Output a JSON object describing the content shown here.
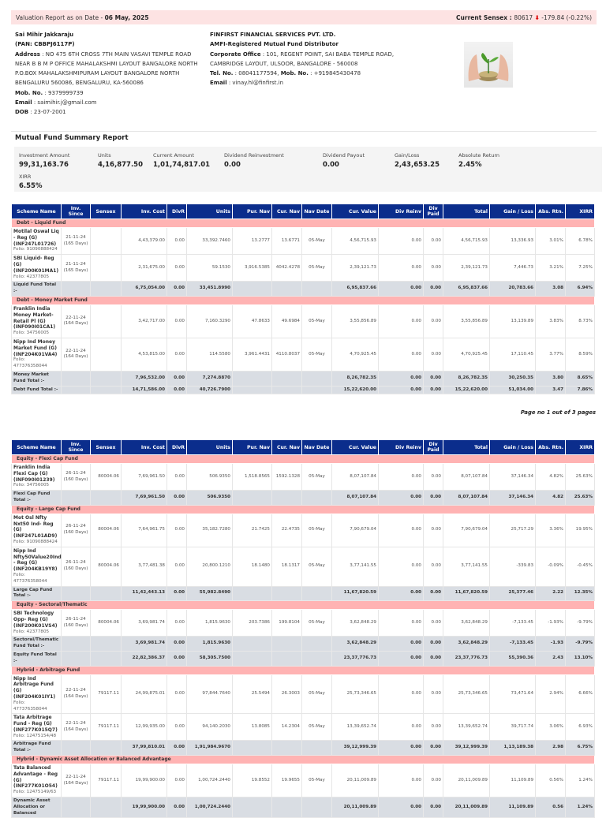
{
  "banner": {
    "label": "Valuation Report as on Date - ",
    "date": "06 May, 2025",
    "sensex_label": "Current Sensex : ",
    "sensex": "80617",
    "change": "-179.84 (-0.22%)",
    "arrow_icon": "down-arrow-icon"
  },
  "client": {
    "name": "Sai Mihir Jakkaraju",
    "pan": "(PAN: CBBPJ6117P)",
    "address_label": "Address",
    "address": "NO 475 6TH CROSS 7TH MAIN VASAVI TEMPLE ROAD NEAR B B M P OFFICE MAHALAKSHMI LAYOUT BANGALORE NORTH P.O.BOX MAHALAKSHMIPURAM LAYOUT BANGALORE NORTH BENGALURU 560086, BENGALURU, KA-560086",
    "mob_label": "Mob. No.",
    "mob": "9379999739",
    "email_label": "Email",
    "email": "saimihir.j@gmail.com",
    "dob_label": "DOB",
    "dob": "23-07-2001"
  },
  "firm": {
    "name": "FINFIRST FINANCIAL SERVICES PVT. LTD.",
    "tagline": "AMFI-Registered Mutual Fund Distributor",
    "office_label": "Corporate Office",
    "office": "101, REGENT POINT, SAI BABA TEMPLE ROAD, CAMBRIDGE LAYOUT, ULSOOR, BANGALORE - 560008",
    "tel_label": "Tel. No.",
    "tel": "08041177594",
    "mob_label": "Mob. No.",
    "mob": "+919845430478",
    "email_label": "Email",
    "email": "vinay.hl@finfirst.in"
  },
  "summary": {
    "title": "Mutual Fund Summary Report",
    "items": [
      {
        "label": "Investment Amount",
        "value": "99,31,163.76"
      },
      {
        "label": "Units",
        "value": "4,16,877.50"
      },
      {
        "label": "Current Amount",
        "value": "1,01,74,817.01"
      },
      {
        "label": "Dividend Reinvestment",
        "value": "0.00"
      },
      {
        "label": "Dividend Payout",
        "value": "0.00"
      },
      {
        "label": "Gain/Loss",
        "value": "2,43,653.25"
      },
      {
        "label": "Absolute Return",
        "value": "2.45%"
      },
      {
        "label": "XIRR",
        "value": "6.55%"
      }
    ]
  },
  "columns": [
    "Scheme Name",
    "Inv. Since",
    "Sensex",
    "Inv. Cost",
    "DivR",
    "Units",
    "Pur. Nav",
    "Cur. Nav",
    "Nav Date",
    "Cur. Value",
    "Div Reinv",
    "Div Paid",
    "Total",
    "Gain / Loss",
    "Abs. Rtn.",
    "XIRR"
  ],
  "page_label": "Page no 1 out of 3 pages",
  "tables": [
    [
      {
        "type": "group",
        "name": "Debt - Liquid Fund"
      },
      {
        "type": "fund",
        "name": "Motilal Oswal Liq - Reg (G) (INF247L01726)",
        "folio": "Folio: 91090888424",
        "since": "21-11-24",
        "days": "(165 Days)",
        "sensex": "",
        "cost": "4,43,379.00",
        "divr": "0.00",
        "units": "33,392.7460",
        "pur": "13.2777",
        "cur": "13.6771",
        "date": "05-May",
        "value": "4,56,715.93",
        "reinv": "0.00",
        "paid": "0.00",
        "total": "4,56,715.93",
        "gain": "13,336.93",
        "abs": "3.01%",
        "xirr": "6.78%"
      },
      {
        "type": "fund",
        "name": "SBI Liquid- Reg (G) (INF200K01MA1)",
        "folio": "Folio: 42377805",
        "since": "21-11-24",
        "days": "(165 Days)",
        "sensex": "",
        "cost": "2,31,675.00",
        "divr": "0.00",
        "units": "59.1530",
        "pur": "3,916.5385",
        "cur": "4042.4278",
        "date": "05-May",
        "value": "2,39,121.73",
        "reinv": "0.00",
        "paid": "0.00",
        "total": "2,39,121.73",
        "gain": "7,446.73",
        "abs": "3.21%",
        "xirr": "7.25%"
      },
      {
        "type": "sub",
        "name": "Liquid Fund Total :-",
        "cost": "6,75,054.00",
        "divr": "0.00",
        "units": "33,451.8990",
        "value": "6,95,837.66",
        "reinv": "0.00",
        "paid": "0.00",
        "total": "6,95,837.66",
        "gain": "20,783.66",
        "abs": "3.08",
        "xirr": "6.94%"
      },
      {
        "type": "group",
        "name": "Debt - Money Market Fund"
      },
      {
        "type": "fund",
        "name": "Franklin India Money Market-Retail Pl (G) (INF090I01CA1)",
        "folio": "Folio: 34756005",
        "since": "22-11-24",
        "days": "(164 Days)",
        "sensex": "",
        "cost": "3,42,717.00",
        "divr": "0.00",
        "units": "7,160.3290",
        "pur": "47.8633",
        "cur": "49.6984",
        "date": "05-May",
        "value": "3,55,856.89",
        "reinv": "0.00",
        "paid": "0.00",
        "total": "3,55,856.89",
        "gain": "13,139.89",
        "abs": "3.83%",
        "xirr": "8.73%"
      },
      {
        "type": "fund",
        "name": "Nipp Ind Money Market Fund (G) (INF204K01VA4)",
        "folio": "Folio: 477376358044",
        "since": "22-11-24",
        "days": "(164 Days)",
        "sensex": "",
        "cost": "4,53,815.00",
        "divr": "0.00",
        "units": "114.5580",
        "pur": "3,961.4431",
        "cur": "4110.8037",
        "date": "05-May",
        "value": "4,70,925.45",
        "reinv": "0.00",
        "paid": "0.00",
        "total": "4,70,925.45",
        "gain": "17,110.45",
        "abs": "3.77%",
        "xirr": "8.59%"
      },
      {
        "type": "sub",
        "name": "Money Market Fund Total :-",
        "cost": "7,96,532.00",
        "divr": "0.00",
        "units": "7,274.8870",
        "value": "8,26,782.35",
        "reinv": "0.00",
        "paid": "0.00",
        "total": "8,26,782.35",
        "gain": "30,250.35",
        "abs": "3.80",
        "xirr": "8.65%"
      },
      {
        "type": "sub",
        "name": "Debt Fund Total :-",
        "cost": "14,71,586.00",
        "divr": "0.00",
        "units": "40,726.7900",
        "value": "15,22,620.00",
        "reinv": "0.00",
        "paid": "0.00",
        "total": "15,22,620.00",
        "gain": "51,034.00",
        "abs": "3.47",
        "xirr": "7.86%"
      }
    ],
    [
      {
        "type": "group",
        "name": "Equity - Flexi Cap Fund"
      },
      {
        "type": "fund",
        "name": "Franklin India Flexi Cap (G) (INF090I01239)",
        "folio": "Folio: 34756005",
        "since": "26-11-24",
        "days": "(160 Days)",
        "sensex": "80004.06",
        "cost": "7,69,961.50",
        "divr": "0.00",
        "units": "506.9350",
        "pur": "1,518.8565",
        "cur": "1592.1328",
        "date": "05-May",
        "value": "8,07,107.84",
        "reinv": "0.00",
        "paid": "0.00",
        "total": "8,07,107.84",
        "gain": "37,146.34",
        "abs": "4.82%",
        "xirr": "25.63%"
      },
      {
        "type": "sub",
        "name": "Flexi Cap Fund Total :-",
        "cost": "7,69,961.50",
        "divr": "0.00",
        "units": "506.9350",
        "value": "8,07,107.84",
        "reinv": "0.00",
        "paid": "0.00",
        "total": "8,07,107.84",
        "gain": "37,146.34",
        "abs": "4.82",
        "xirr": "25.63%"
      },
      {
        "type": "group",
        "name": "Equity - Large Cap Fund"
      },
      {
        "type": "fund",
        "name": "Mot Osl Nfty Nxt50 Ind- Reg (G) (INF247L01AD9)",
        "folio": "Folio: 91090888424",
        "since": "26-11-24",
        "days": "(160 Days)",
        "sensex": "80004.06",
        "cost": "7,64,961.75",
        "divr": "0.00",
        "units": "35,182.7280",
        "pur": "21.7425",
        "cur": "22.4735",
        "date": "05-May",
        "value": "7,90,679.04",
        "reinv": "0.00",
        "paid": "0.00",
        "total": "7,90,679.04",
        "gain": "25,717.29",
        "abs": "3.36%",
        "xirr": "19.95%"
      },
      {
        "type": "fund",
        "name": "Nipp Ind Nfty50Value20Ind - Reg (G) (INF204KB19Y8)",
        "folio": "Folio: 477376358044",
        "since": "26-11-24",
        "days": "(160 Days)",
        "sensex": "80004.06",
        "cost": "3,77,481.38",
        "divr": "0.00",
        "units": "20,800.1210",
        "pur": "18.1480",
        "cur": "18.1317",
        "date": "05-May",
        "value": "3,77,141.55",
        "reinv": "0.00",
        "paid": "0.00",
        "total": "3,77,141.55",
        "gain": "-339.83",
        "abs": "-0.09%",
        "xirr": "-0.45%"
      },
      {
        "type": "sub",
        "name": "Large Cap Fund Total :-",
        "cost": "11,42,443.13",
        "divr": "0.00",
        "units": "55,982.8490",
        "value": "11,67,820.59",
        "reinv": "0.00",
        "paid": "0.00",
        "total": "11,67,820.59",
        "gain": "25,377.46",
        "abs": "2.22",
        "xirr": "12.35%"
      },
      {
        "type": "group",
        "name": "Equity - Sectoral/Thematic"
      },
      {
        "type": "fund",
        "name": "SBI Technology Opp- Reg (G) (INF200K01VS4)",
        "folio": "Folio: 42377805",
        "since": "26-11-24",
        "days": "(160 Days)",
        "sensex": "80004.06",
        "cost": "3,69,981.74",
        "divr": "0.00",
        "units": "1,815.9630",
        "pur": "203.7386",
        "cur": "199.8104",
        "date": "05-May",
        "value": "3,62,848.29",
        "reinv": "0.00",
        "paid": "0.00",
        "total": "3,62,848.29",
        "gain": "-7,133.45",
        "abs": "-1.93%",
        "xirr": "-9.79%"
      },
      {
        "type": "sub",
        "name": "Sectoral/Thematic Fund Total :-",
        "cost": "3,69,981.74",
        "divr": "0.00",
        "units": "1,815.9630",
        "value": "3,62,848.29",
        "reinv": "0.00",
        "paid": "0.00",
        "total": "3,62,848.29",
        "gain": "-7,133.45",
        "abs": "-1.93",
        "xirr": "-9.79%"
      },
      {
        "type": "sub",
        "name": "Equity Fund Total :-",
        "cost": "22,82,386.37",
        "divr": "0.00",
        "units": "58,305.7500",
        "value": "23,37,776.73",
        "reinv": "0.00",
        "paid": "0.00",
        "total": "23,37,776.73",
        "gain": "55,390.36",
        "abs": "2.43",
        "xirr": "13.10%"
      },
      {
        "type": "group",
        "name": "Hybrid - Arbitrage Fund"
      },
      {
        "type": "fund",
        "name": "Nipp Ind Arbitrage Fund (G) (INF204K01IY1)",
        "folio": "Folio: 477376358044",
        "since": "22-11-24",
        "days": "(164 Days)",
        "sensex": "79117.11",
        "cost": "24,99,875.01",
        "divr": "0.00",
        "units": "97,844.7640",
        "pur": "25.5494",
        "cur": "26.3003",
        "date": "05-May",
        "value": "25,73,346.65",
        "reinv": "0.00",
        "paid": "0.00",
        "total": "25,73,346.65",
        "gain": "73,471.64",
        "abs": "2.94%",
        "xirr": "6.66%"
      },
      {
        "type": "fund",
        "name": "Tata Arbitrage Fund - Reg (G) (INF277K015Q7)",
        "folio": "Folio: 12475154/48",
        "since": "22-11-24",
        "days": "(164 Days)",
        "sensex": "79117.11",
        "cost": "12,99,935.00",
        "divr": "0.00",
        "units": "94,140.2030",
        "pur": "13.8085",
        "cur": "14.2304",
        "date": "05-May",
        "value": "13,39,652.74",
        "reinv": "0.00",
        "paid": "0.00",
        "total": "13,39,652.74",
        "gain": "39,717.74",
        "abs": "3.06%",
        "xirr": "6.93%"
      },
      {
        "type": "sub",
        "name": "Arbitrage Fund Total :-",
        "cost": "37,99,810.01",
        "divr": "0.00",
        "units": "1,91,984.9670",
        "value": "39,12,999.39",
        "reinv": "0.00",
        "paid": "0.00",
        "total": "39,12,999.39",
        "gain": "1,13,189.38",
        "abs": "2.98",
        "xirr": "6.75%"
      },
      {
        "type": "group",
        "name": "Hybrid - Dynamic Asset Allocation or Balanced Advantage"
      },
      {
        "type": "fund",
        "name": "Tata Balanced Advantage - Reg (G) (INF277K01O54)",
        "folio": "Folio: 12475149/63",
        "since": "22-11-24",
        "days": "(164 Days)",
        "sensex": "79117.11",
        "cost": "19,99,900.00",
        "divr": "0.00",
        "units": "1,00,724.2440",
        "pur": "19.8552",
        "cur": "19.9655",
        "date": "05-May",
        "value": "20,11,009.89",
        "reinv": "0.00",
        "paid": "0.00",
        "total": "20,11,009.89",
        "gain": "11,109.89",
        "abs": "0.56%",
        "xirr": "1.24%"
      },
      {
        "type": "sub",
        "name": "Dynamic Asset Allocation or Balanced",
        "cost": "19,99,900.00",
        "divr": "0.00",
        "units": "1,00,724.2440",
        "value": "20,11,009.89",
        "reinv": "0.00",
        "paid": "0.00",
        "total": "20,11,009.89",
        "gain": "11,109.89",
        "abs": "0.56",
        "xirr": "1.24%"
      }
    ]
  ],
  "colors": {
    "header": "#0b2d8c",
    "group": "#ffb3b3",
    "subtotal": "#d9dde3",
    "banner": "#fde3e3",
    "down": "#dd0000"
  }
}
